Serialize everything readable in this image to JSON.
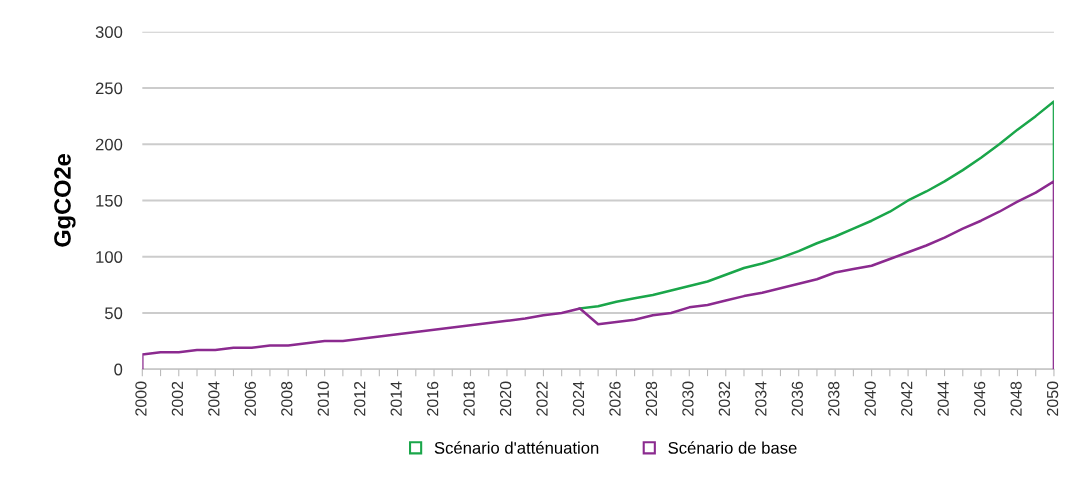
{
  "chart_data": {
    "type": "line",
    "ylabel": "GgCO2e",
    "series": [
      {
        "name": "Scénario d'atténuation",
        "color": "#1aa64a",
        "x": [
          2024,
          2025,
          2026,
          2027,
          2028,
          2029,
          2030,
          2031,
          2032,
          2033,
          2034,
          2035,
          2036,
          2037,
          2038,
          2039,
          2040,
          2041,
          2042,
          2043,
          2044,
          2045,
          2046,
          2047,
          2048,
          2049,
          2050,
          2050
        ],
        "values": [
          54,
          56,
          60,
          63,
          66,
          70,
          74,
          78,
          84,
          90,
          94,
          99,
          105,
          112,
          118,
          125,
          132,
          140,
          150,
          158,
          167,
          177,
          188,
          200,
          213,
          225,
          238,
          167
        ]
      },
      {
        "name": "Scénario de base",
        "color": "#8b2a8f",
        "x": [
          2000,
          2000,
          2001,
          2002,
          2003,
          2004,
          2005,
          2006,
          2007,
          2008,
          2009,
          2010,
          2011,
          2012,
          2013,
          2014,
          2015,
          2016,
          2017,
          2018,
          2019,
          2020,
          2021,
          2022,
          2023,
          2024,
          2025,
          2026,
          2027,
          2028,
          2029,
          2030,
          2031,
          2032,
          2033,
          2034,
          2035,
          2036,
          2037,
          2038,
          2039,
          2040,
          2041,
          2042,
          2043,
          2044,
          2045,
          2046,
          2047,
          2048,
          2049,
          2050,
          2050
        ],
        "values": [
          0,
          13,
          15,
          15,
          17,
          17,
          19,
          19,
          21,
          21,
          23,
          25,
          25,
          27,
          29,
          31,
          33,
          35,
          37,
          39,
          41,
          43,
          45,
          48,
          50,
          54,
          40,
          42,
          44,
          48,
          50,
          55,
          57,
          61,
          65,
          68,
          72,
          76,
          80,
          86,
          89,
          92,
          98,
          104,
          110,
          117,
          125,
          132,
          140,
          149,
          157,
          167,
          0
        ]
      }
    ],
    "xlim": [
      2000,
      2050
    ],
    "xticks": [
      2000,
      {
        "value": 2001,
        "label": null
      },
      2002,
      {
        "value": 2003,
        "label": null
      },
      2004,
      {
        "value": 2005,
        "label": null
      },
      2006,
      {
        "value": 2007,
        "label": null
      },
      2008,
      {
        "value": 2009,
        "label": null
      },
      2010,
      {
        "value": 2011,
        "label": null
      },
      2012,
      {
        "value": 2013,
        "label": null
      },
      2014,
      {
        "value": 2015,
        "label": null
      },
      2016,
      {
        "value": 2017,
        "label": null
      },
      2018,
      {
        "value": 2019,
        "label": null
      },
      2020,
      {
        "value": 2021,
        "label": null
      },
      2022,
      {
        "value": 2023,
        "label": null
      },
      2024,
      {
        "value": 2025,
        "label": null
      },
      2026,
      {
        "value": 2027,
        "label": null
      },
      2028,
      {
        "value": 2029,
        "label": null
      },
      2030,
      {
        "value": 2031,
        "label": null
      },
      2032,
      {
        "value": 2033,
        "label": null
      },
      2034,
      {
        "value": 2035,
        "label": null
      },
      2036,
      {
        "value": 2037,
        "label": null
      },
      2038,
      {
        "value": 2039,
        "label": null
      },
      2040,
      {
        "value": 2041,
        "label": null
      },
      2042,
      {
        "value": 2043,
        "label": null
      },
      2044,
      {
        "value": 2045,
        "label": null
      },
      2046,
      {
        "value": 2047,
        "label": null
      },
      2048,
      {
        "value": 2049,
        "label": null
      },
      2050
    ],
    "ylim": [
      0,
      300
    ],
    "yticks": [
      0,
      50,
      100,
      150,
      200,
      250,
      300
    ],
    "grid": "y",
    "legend": "bottom"
  }
}
